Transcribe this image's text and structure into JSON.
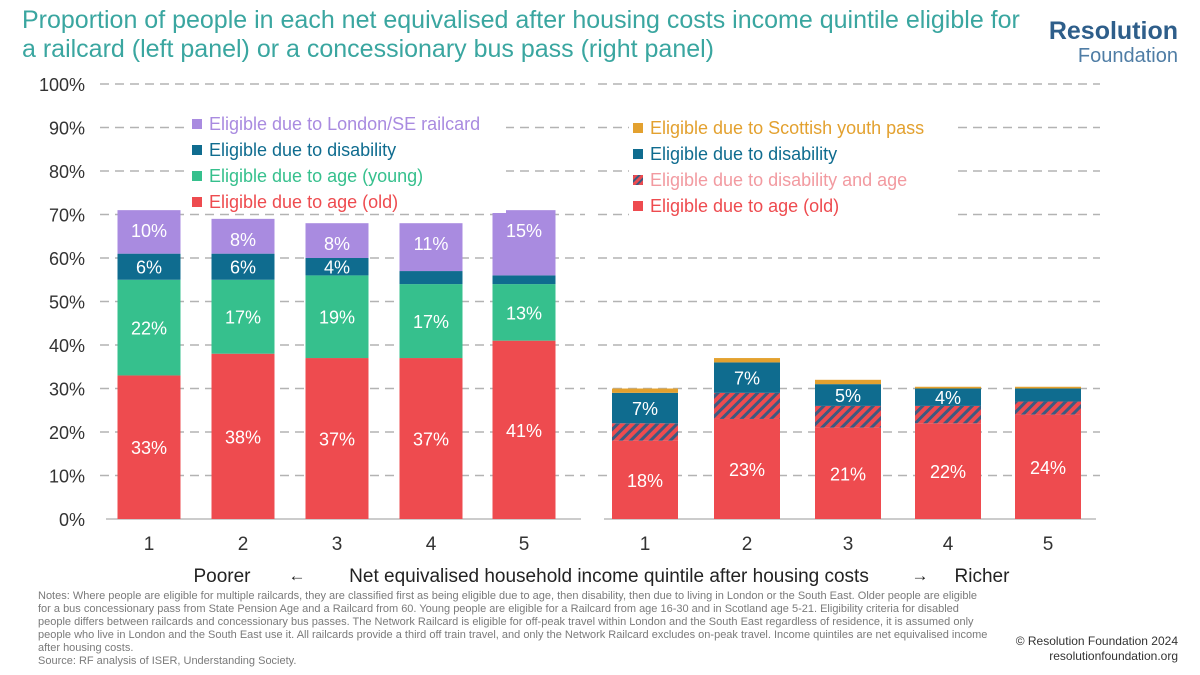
{
  "header": {
    "title": "Proportion of people in each net equivalised after housing costs income quintile eligible for a railcard (left panel) or a concessionary bus pass (right panel)",
    "logo_main": "Resolution",
    "logo_sub": "Foundation"
  },
  "colors": {
    "old": "#ee4b4f",
    "young": "#36c08d",
    "disability": "#0f6c8f",
    "london": "#a98be0",
    "disability_and_age_stripe": "#3d5a80",
    "scottish": "#e3a12f",
    "gridline": "#b3b3b3",
    "axis_text": "#333333"
  },
  "chart_data": [
    {
      "type": "bar",
      "stacked": true,
      "panel": "left",
      "categories": [
        "1",
        "2",
        "3",
        "4",
        "5"
      ],
      "series": [
        {
          "name": "Eligible due to age (old)",
          "key": "old",
          "values": [
            33,
            38,
            37,
            37,
            41
          ],
          "labels": [
            "33%",
            "38%",
            "37%",
            "37%",
            "41%"
          ]
        },
        {
          "name": "Eligible due to age (young)",
          "key": "young",
          "values": [
            22,
            17,
            19,
            17,
            13
          ],
          "labels": [
            "22%",
            "17%",
            "19%",
            "17%",
            "13%"
          ]
        },
        {
          "name": "Eligible due to disability",
          "key": "disability",
          "values": [
            6,
            6,
            4,
            3,
            2
          ],
          "labels": [
            "6%",
            "6%",
            "4%",
            "",
            ""
          ]
        },
        {
          "name": "Eligible due to London/SE railcard",
          "key": "london",
          "values": [
            10,
            8,
            8,
            11,
            15
          ],
          "labels": [
            "10%",
            "8%",
            "8%",
            "11%",
            "15%"
          ]
        }
      ],
      "legend": [
        {
          "name": "Eligible due to London/SE railcard",
          "key": "london"
        },
        {
          "name": "Eligible due to disability",
          "key": "disability"
        },
        {
          "name": "Eligible due to age (young)",
          "key": "young"
        },
        {
          "name": "Eligible due to age (old)",
          "key": "old"
        }
      ],
      "ylim": [
        0,
        100
      ],
      "yticks": [
        "0%",
        "10%",
        "20%",
        "30%",
        "40%",
        "50%",
        "60%",
        "70%",
        "80%",
        "90%",
        "100%"
      ],
      "grid": true,
      "legend_placement": "top-left"
    },
    {
      "type": "bar",
      "stacked": true,
      "panel": "right",
      "categories": [
        "1",
        "2",
        "3",
        "4",
        "5"
      ],
      "series": [
        {
          "name": "Eligible due to age (old)",
          "key": "old",
          "values": [
            18,
            23,
            21,
            22,
            24
          ],
          "labels": [
            "18%",
            "23%",
            "21%",
            "22%",
            "24%"
          ]
        },
        {
          "name": "Eligible due to disability and age",
          "key": "disability_and_age",
          "values": [
            4,
            6,
            5,
            4,
            3
          ],
          "labels": [
            "",
            "",
            "",
            "",
            ""
          ]
        },
        {
          "name": "Eligible due to disability",
          "key": "disability",
          "values": [
            7,
            7,
            5,
            4,
            3
          ],
          "labels": [
            "7%",
            "7%",
            "5%",
            "4%",
            ""
          ]
        },
        {
          "name": "Eligible due to Scottish youth pass",
          "key": "scottish",
          "values": [
            1,
            1,
            1,
            0.4,
            0.4
          ],
          "labels": [
            "",
            "",
            "",
            "",
            ""
          ]
        }
      ],
      "legend": [
        {
          "name": "Eligible due to Scottish youth pass",
          "key": "scottish"
        },
        {
          "name": "Eligible due to disability",
          "key": "disability"
        },
        {
          "name": "Eligible due to disability and age",
          "key": "disability_and_age"
        },
        {
          "name": "Eligible due to age (old)",
          "key": "old"
        }
      ],
      "ylim": [
        0,
        100
      ],
      "grid": true,
      "legend_placement": "top-left"
    }
  ],
  "xaxis": {
    "poorer": "Poorer",
    "arrow_left": "←",
    "label": "Net equivalised household income quintile after housing costs",
    "arrow_right": "→",
    "richer": "Richer"
  },
  "notes": {
    "text": "Notes: Where people are eligible for multiple railcards, they are classified first as being eligible due to age, then disability, then due to living in London or the South East. Older people are eligible for a bus concessionary pass from State Pension Age and a Railcard from 60. Young people are eligible for a Railcard from age 16-30 and in Scotland age 5-21. Eligibility criteria for disabled people differs between railcards and concessionary bus passes. The Network Railcard is eligible for off-peak travel within London and the South East regardless of residence, it is assumed only people who live in London and the South East use it. All railcards provide a third off train travel, and only the Network Railcard excludes on-peak travel. Income quintiles are net equivalised income after housing costs.",
    "source": "Source: RF analysis of ISER, Understanding Society."
  },
  "footer": {
    "copyright": "© Resolution Foundation 2024",
    "website": "resolutionfoundation.org"
  }
}
